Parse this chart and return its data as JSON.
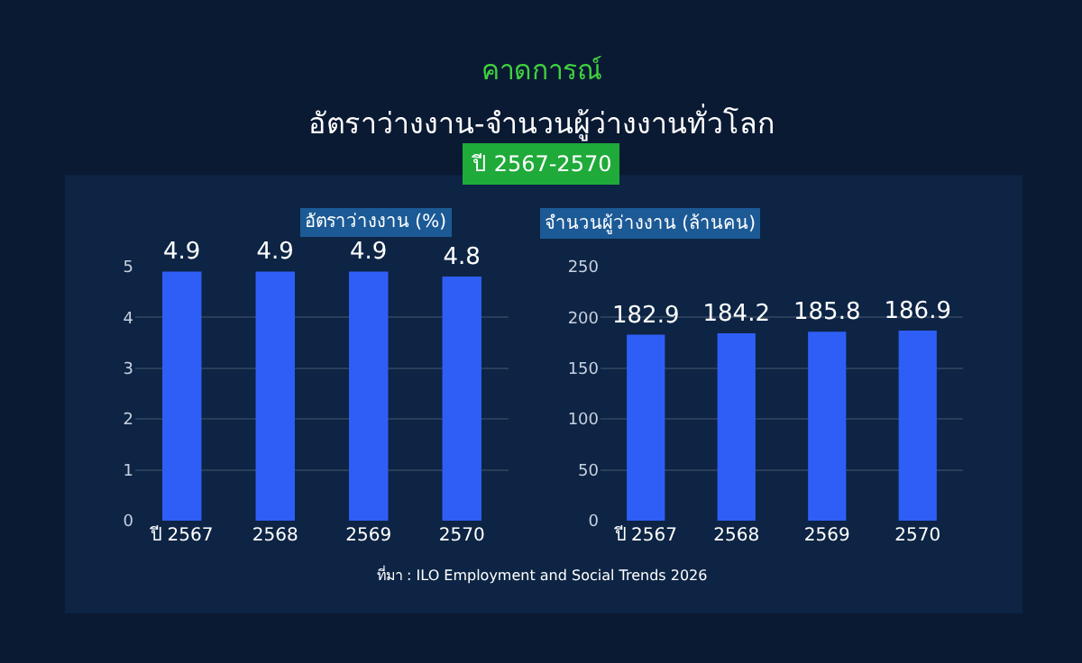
{
  "chart_data": [
    {
      "type": "bar",
      "title": "อัตราว่างงาน (%)",
      "annotations": [
        "คาดการณ์",
        "อัตราว่างงาน-จำนวนผู้ว่างงานทั่วโลก",
        "ปี 2567-2570"
      ],
      "categories": [
        "ปี 2567",
        "2568",
        "2569",
        "2570"
      ],
      "values": [
        4.9,
        4.9,
        4.9,
        4.8
      ],
      "color": "#2f5ef7",
      "ylim": [
        0,
        5
      ],
      "yticks": [
        0,
        1,
        2,
        3,
        4,
        5
      ],
      "grid": "y",
      "data_labels": true
    },
    {
      "type": "bar",
      "title": "จำนวนผู้ว่างงาน (ล้านคน)",
      "annotations": [
        "ที่มา : ILO Employment and Social Trends 2026"
      ],
      "categories": [
        "ปี 2567",
        "2568",
        "2569",
        "2570"
      ],
      "values": [
        182.9,
        184.2,
        185.8,
        186.9
      ],
      "color": "#2f5ef7",
      "ylim": [
        0,
        250
      ],
      "yticks": [
        0,
        50,
        100,
        150,
        200,
        250
      ],
      "grid": "y",
      "data_labels": true
    }
  ]
}
